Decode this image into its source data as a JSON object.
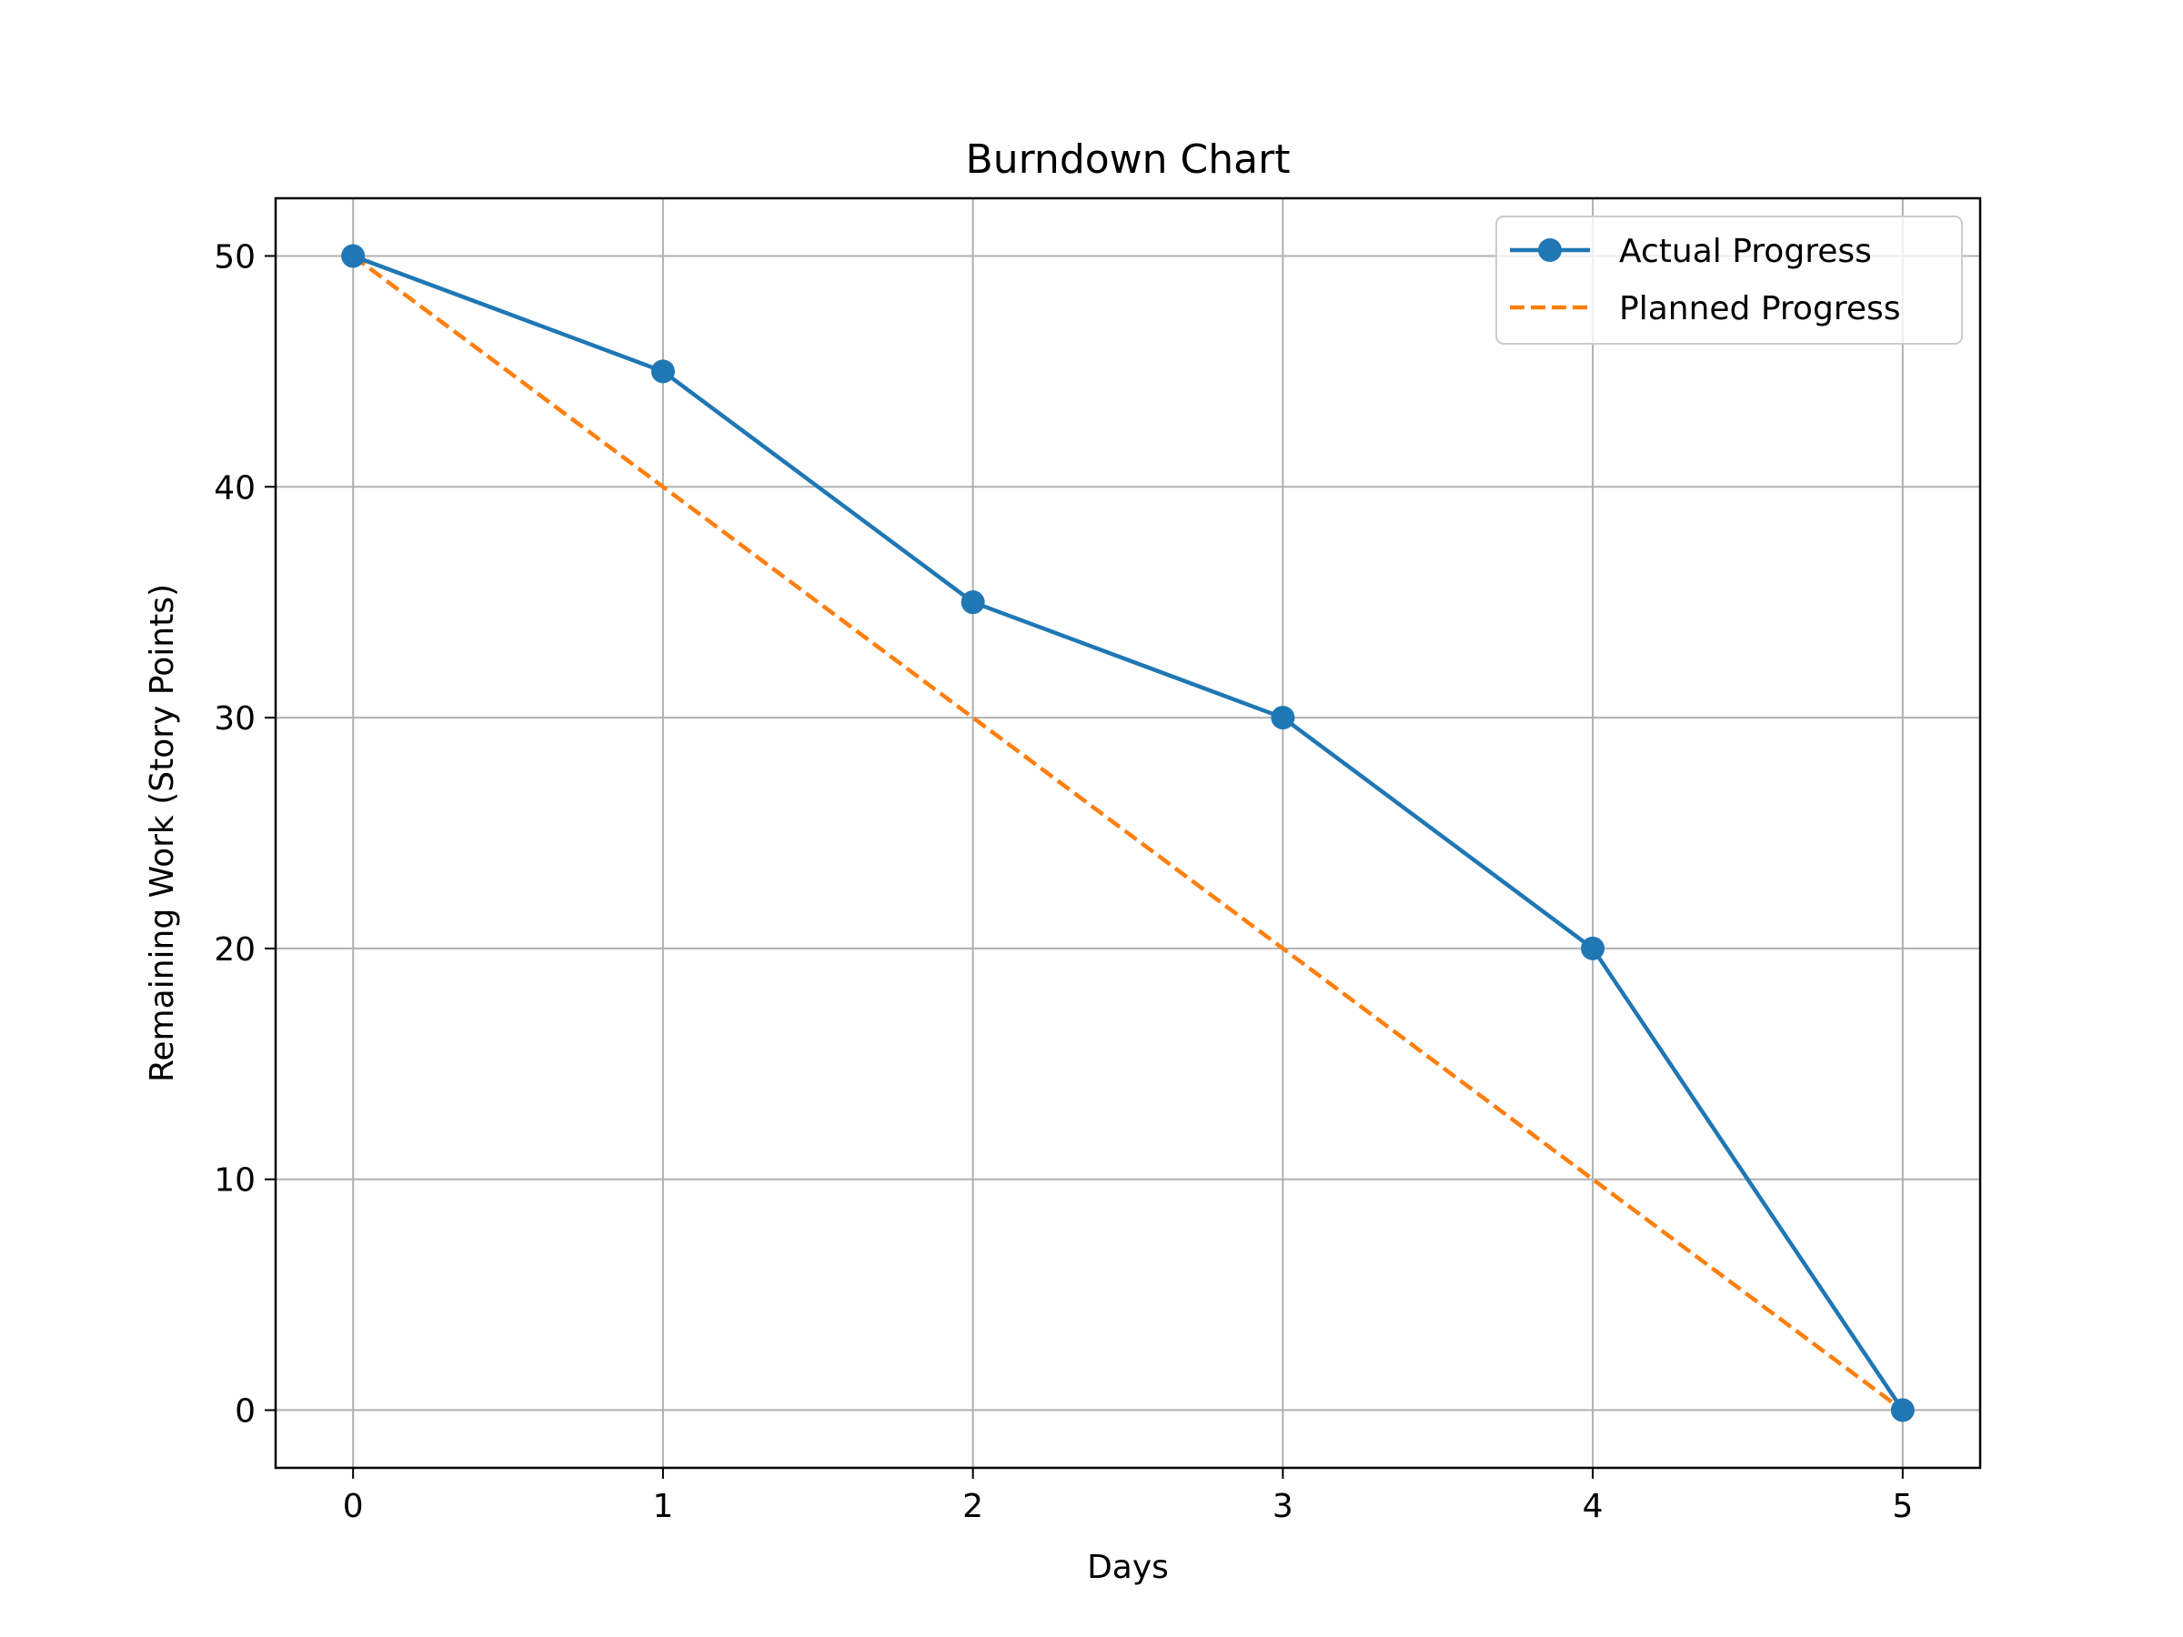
{
  "chart_data": {
    "type": "line",
    "title": "Burndown Chart",
    "xlabel": "Days",
    "ylabel": "Remaining Work (Story Points)",
    "x": [
      0,
      1,
      2,
      3,
      4,
      5
    ],
    "xlim": [
      -0.25,
      5.25
    ],
    "ylim": [
      -2.5,
      52.5
    ],
    "xticks": [
      0,
      1,
      2,
      3,
      4,
      5
    ],
    "yticks": [
      0,
      10,
      20,
      30,
      40,
      50
    ],
    "xtick_labels": [
      "0",
      "1",
      "2",
      "3",
      "4",
      "5"
    ],
    "ytick_labels": [
      "0",
      "10",
      "20",
      "30",
      "40",
      "50"
    ],
    "grid": true,
    "legend_position": "top-right",
    "series": [
      {
        "name": "Actual Progress",
        "values": [
          50,
          45,
          35,
          30,
          20,
          0
        ],
        "color": "#1f77b4",
        "line_style": "solid",
        "marker": "circle"
      },
      {
        "name": "Planned Progress",
        "values": [
          50,
          40,
          30,
          20,
          10,
          0
        ],
        "color": "#ff7f0e",
        "line_style": "dashed",
        "marker": "none"
      }
    ]
  }
}
